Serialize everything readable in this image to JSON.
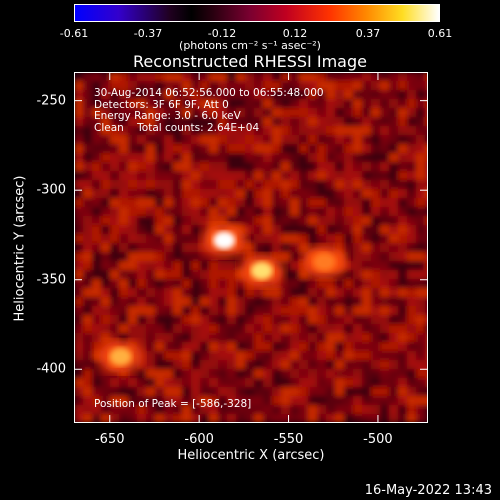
{
  "colorbar": {
    "ticks": [
      "-0.61",
      "-0.37",
      "-0.12",
      "0.12",
      "0.37",
      "0.61"
    ],
    "units": "(photons cm⁻² s⁻¹ asec⁻²)"
  },
  "chart_data": {
    "type": "heatmap",
    "title": "Reconstructed RHESSI Image",
    "xlabel": "Heliocentric X (arcsec)",
    "ylabel": "Heliocentric Y (arcsec)",
    "xlim": [
      -670,
      -472
    ],
    "ylim": [
      -430,
      -234
    ],
    "xticks": [
      "-650",
      "-600",
      "-550",
      "-500"
    ],
    "yticks": [
      "-250",
      "-300",
      "-350",
      "-400"
    ],
    "clim": [
      -0.61,
      0.61
    ],
    "sources": [
      {
        "x": -586,
        "y": -328,
        "peak": 0.61
      },
      {
        "x": -565,
        "y": -345,
        "peak": 0.45
      },
      {
        "x": -530,
        "y": -340,
        "peak": 0.35
      },
      {
        "x": -644,
        "y": -393,
        "peak": 0.38
      }
    ],
    "annotations": [
      "30-Aug-2014 06:52:56.000 to 06:55:48.000",
      "Detectors: 3F 6F 9F, Att 0",
      "Energy Range: 3.0 - 6.0 keV",
      "Clean    Total counts: 2.64E+04"
    ],
    "peak_label": "Position of Peak = [-586,-328]"
  },
  "timestamp": "16-May-2022 13:43"
}
